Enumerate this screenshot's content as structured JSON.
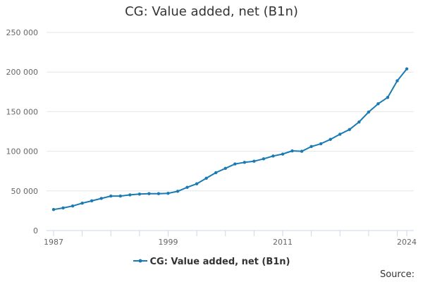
{
  "chart_data": {
    "type": "line",
    "title": "CG: Value added, net (B1n)",
    "xlabel": "",
    "ylabel": "",
    "xlim": [
      1987,
      2024
    ],
    "ylim": [
      0,
      250000
    ],
    "x_ticks": [
      1987,
      1999,
      2011,
      2024
    ],
    "y_ticks": [
      0,
      50000,
      100000,
      150000,
      200000,
      250000
    ],
    "y_tick_labels": [
      "0",
      "50 000",
      "100 000",
      "150 000",
      "200 000",
      "250 000"
    ],
    "grid": true,
    "legend_position": "bottom",
    "series": [
      {
        "name": "CG: Value added, net (B1n)",
        "color": "#1a7ab3",
        "x": [
          1987,
          1988,
          1989,
          1990,
          1991,
          1992,
          1993,
          1994,
          1995,
          1996,
          1997,
          1998,
          1999,
          2000,
          2001,
          2002,
          2003,
          2004,
          2005,
          2006,
          2007,
          2008,
          2009,
          2010,
          2011,
          2012,
          2013,
          2014,
          2015,
          2016,
          2017,
          2018,
          2019,
          2020,
          2021,
          2022,
          2023,
          2024
        ],
        "values": [
          26500,
          28500,
          31000,
          34500,
          37500,
          40500,
          43500,
          43500,
          45000,
          46000,
          46500,
          46500,
          47000,
          49500,
          54500,
          59000,
          66000,
          73000,
          78500,
          84000,
          86000,
          87500,
          90500,
          94000,
          96500,
          100500,
          100000,
          106000,
          109500,
          115000,
          121500,
          127500,
          137000,
          149500,
          160000,
          168000,
          189000,
          204000
        ]
      }
    ]
  },
  "legend": {
    "label": "CG: Value added, net (B1n)"
  },
  "footer": {
    "source_label": "Source:"
  }
}
